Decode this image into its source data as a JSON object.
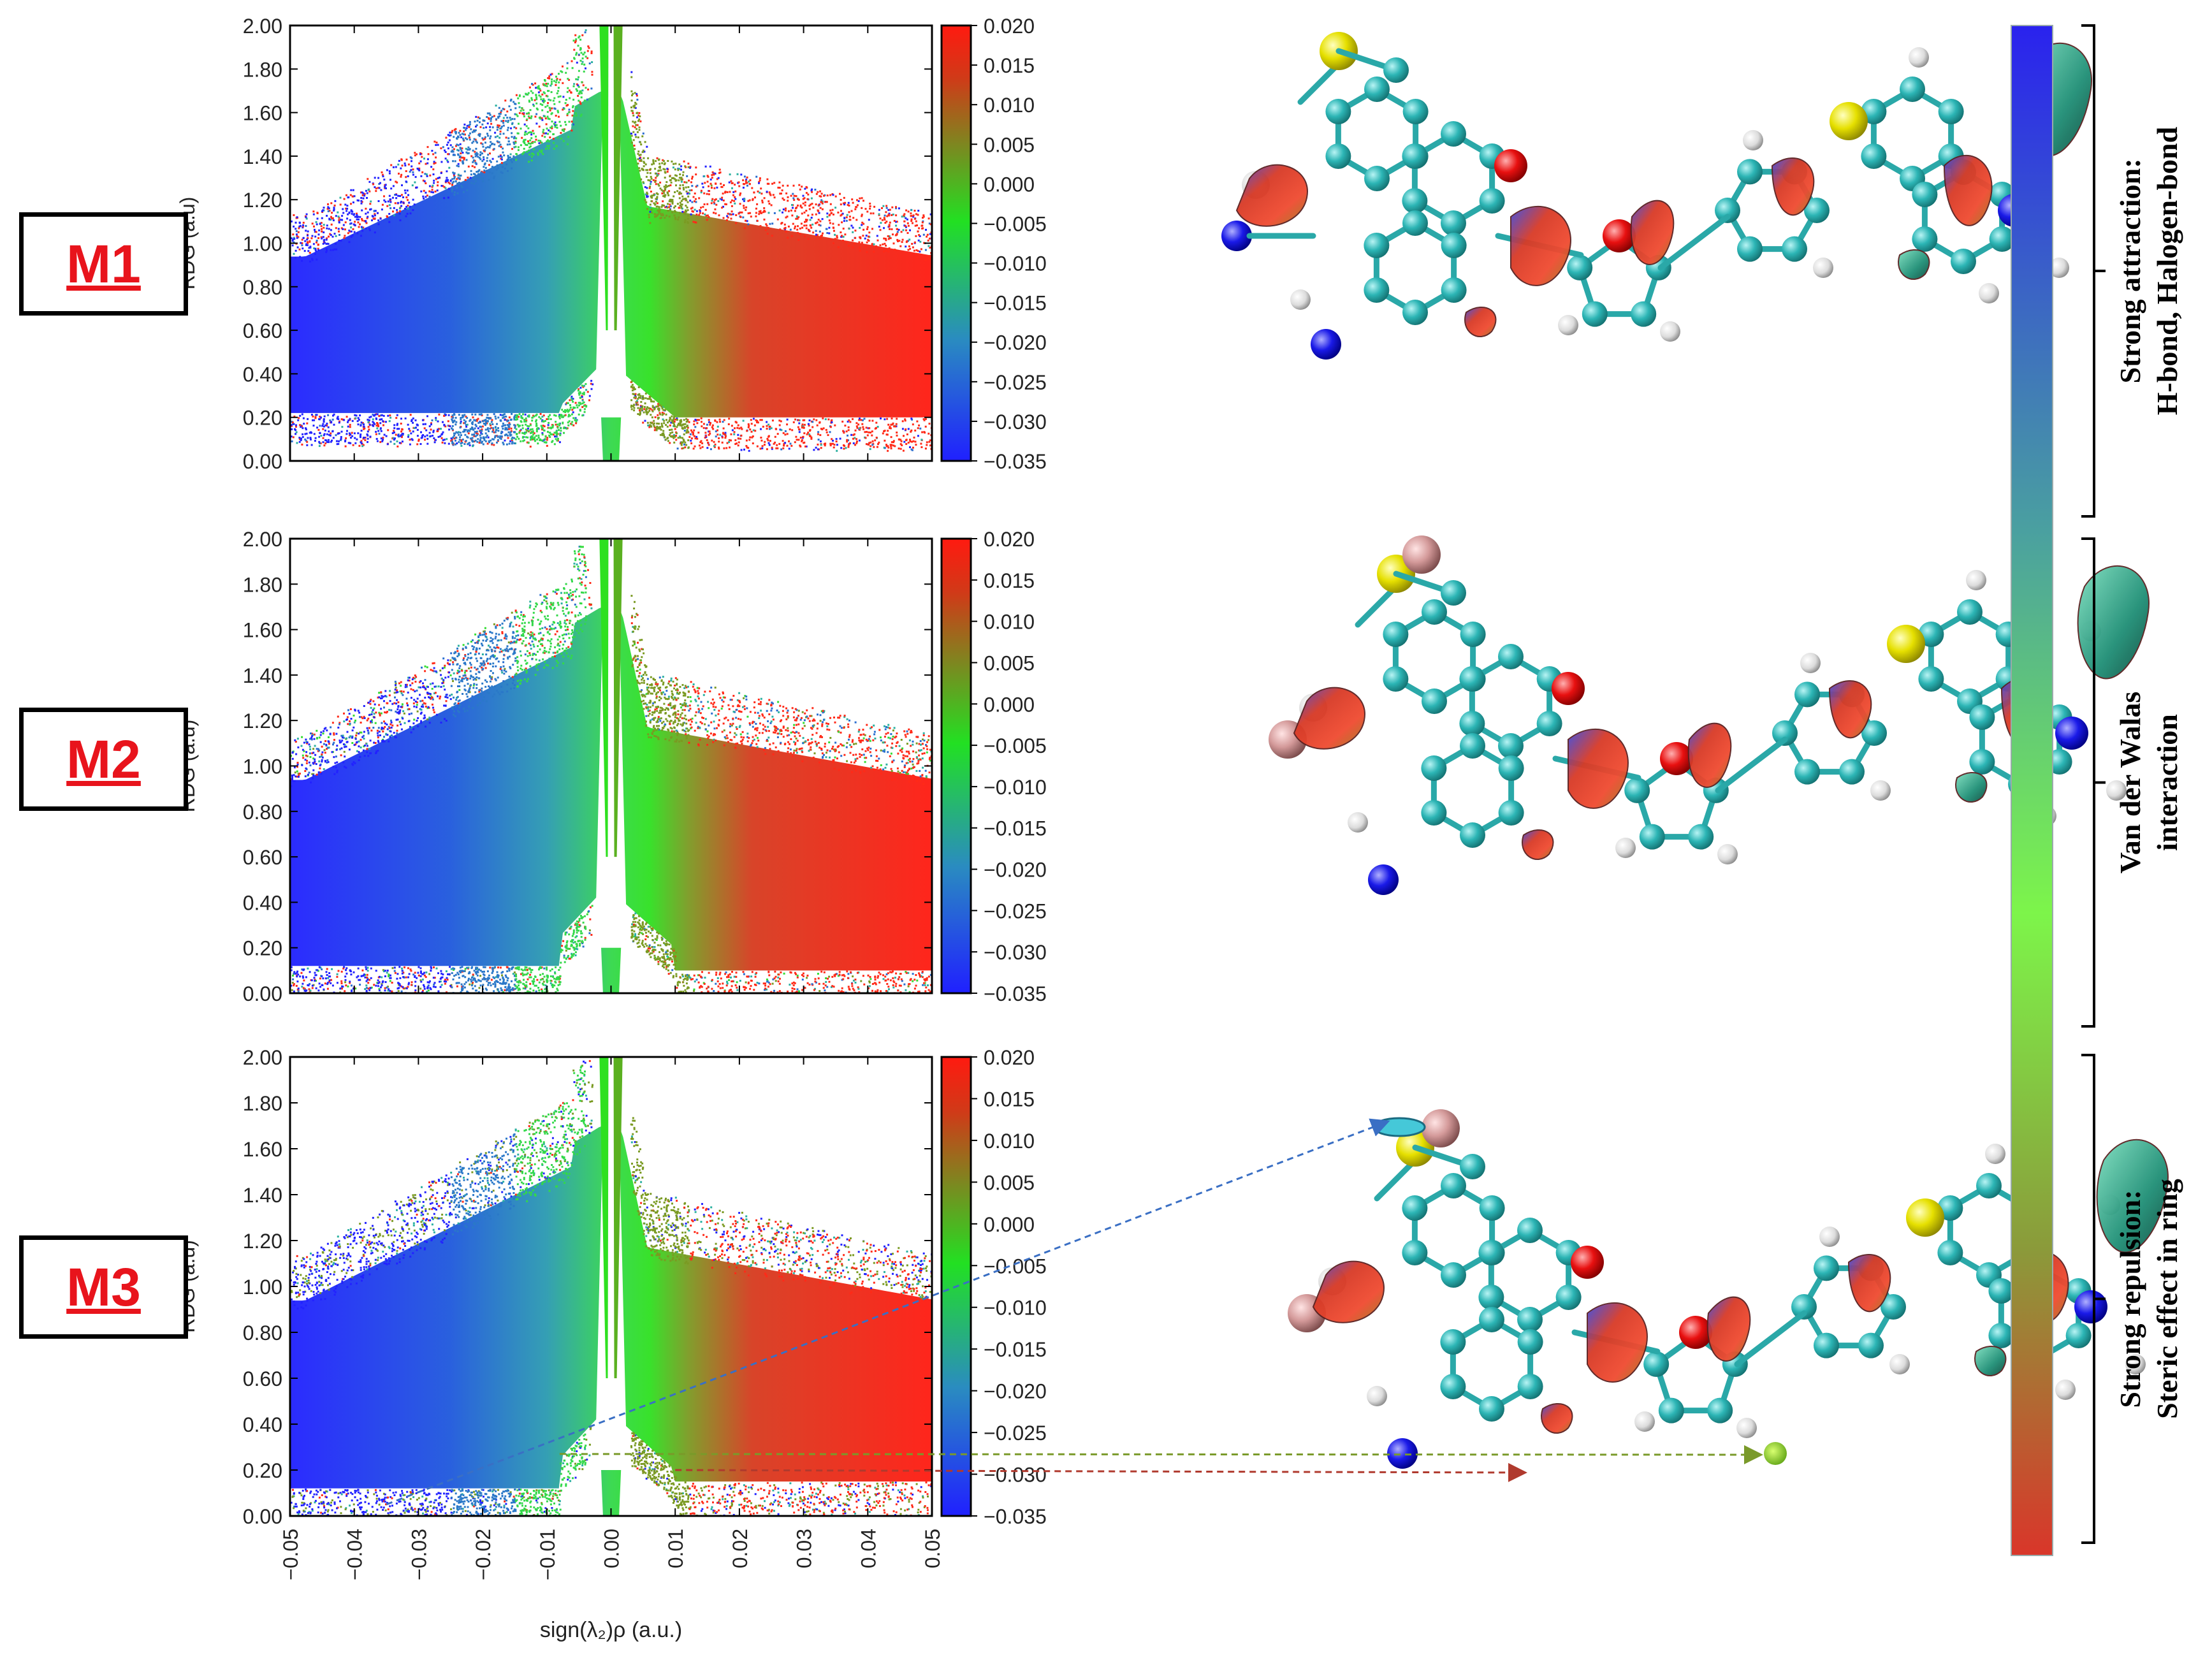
{
  "panels": [
    {
      "label": "M1",
      "molecule_heteroatom": "nitrogen",
      "has_arrows": false
    },
    {
      "label": "M2",
      "molecule_heteroatom": "bromine",
      "has_arrows": false
    },
    {
      "label": "M3",
      "molecule_heteroatom": "bromine",
      "has_arrows": true
    }
  ],
  "chart_data": [
    {
      "type": "scatter",
      "panel": "M1",
      "title": "",
      "xlabel": "",
      "ylabel": "RDG (a.u)",
      "xlim": [
        -0.05,
        0.05
      ],
      "ylim": [
        0.0,
        2.0
      ],
      "yticks": [
        "0.00",
        "0.20",
        "0.40",
        "0.60",
        "0.80",
        "1.00",
        "1.20",
        "1.40",
        "1.60",
        "1.80",
        "2.00"
      ],
      "colorbar": {
        "range": [
          -0.035,
          0.02
        ],
        "ticks": [
          "0.020",
          "0.015",
          "0.010",
          "0.005",
          "0.000",
          "−0.005",
          "−0.010",
          "−0.015",
          "−0.020",
          "−0.025",
          "−0.030",
          "−0.035"
        ]
      },
      "spikes": [
        0.0
      ],
      "floor": {
        "left": 0.22,
        "right": 0.2
      }
    },
    {
      "type": "scatter",
      "panel": "M2",
      "title": "",
      "xlabel": "",
      "ylabel": "RDG (a.u)",
      "xlim": [
        -0.05,
        0.05
      ],
      "ylim": [
        0.0,
        2.0
      ],
      "yticks": [
        "0.00",
        "0.20",
        "0.40",
        "0.60",
        "0.80",
        "1.00",
        "1.20",
        "1.40",
        "1.60",
        "1.80",
        "2.00"
      ],
      "colorbar": {
        "range": [
          -0.035,
          0.02
        ],
        "ticks": [
          "0.020",
          "0.015",
          "0.010",
          "0.005",
          "0.000",
          "−0.005",
          "−0.010",
          "−0.015",
          "−0.020",
          "−0.025",
          "−0.030",
          "−0.035"
        ]
      },
      "spikes": [
        0.0
      ],
      "floor": {
        "left": 0.12,
        "right": 0.1
      }
    },
    {
      "type": "scatter",
      "panel": "M3",
      "title": "",
      "xlabel": "sign(λ₂)ρ (a.u.)",
      "ylabel": "RDG (a.u)",
      "xlim": [
        -0.05,
        0.05
      ],
      "ylim": [
        0.0,
        2.0
      ],
      "xticks": [
        "−0.05",
        "−0.04",
        "−0.03",
        "−0.02",
        "−0.01",
        "0.00",
        "0.01",
        "0.02",
        "0.03",
        "0.04",
        "0.05"
      ],
      "yticks": [
        "0.00",
        "0.20",
        "0.40",
        "0.60",
        "0.80",
        "1.00",
        "1.20",
        "1.40",
        "1.60",
        "1.80",
        "2.00"
      ],
      "colorbar": {
        "range": [
          -0.035,
          0.02
        ],
        "ticks": [
          "0.020",
          "0.015",
          "0.010",
          "0.005",
          "0.000",
          "−0.005",
          "−0.010",
          "−0.015",
          "−0.020",
          "−0.025",
          "−0.030",
          "−0.035"
        ]
      },
      "spikes": [
        0.0
      ],
      "floor": {
        "left": 0.12,
        "right": 0.15
      },
      "annotations": [
        {
          "x": -0.035,
          "y": 0.05,
          "color": "#3a6fc4",
          "target": "cyan isosurface"
        },
        {
          "x": -0.008,
          "y": 0.27,
          "color": "#7a9a2a",
          "target": "green isosurface"
        },
        {
          "x": 0.01,
          "y": 0.2,
          "color": "#b03a2e",
          "target": "red isosurface"
        }
      ]
    }
  ],
  "legend_bar": {
    "sections": [
      {
        "line1": "Strong attraction:",
        "line2": "H-bond, Halogen-bond"
      },
      {
        "line1": "Van der Walas",
        "line2": "interaction"
      },
      {
        "line1": "Strong repulsion:",
        "line2": "Steric effect in ring"
      }
    ],
    "colors": [
      "#2a22ee",
      "#4aa0a0",
      "#7df54a",
      "#8b9a3a",
      "#d9362a"
    ]
  }
}
